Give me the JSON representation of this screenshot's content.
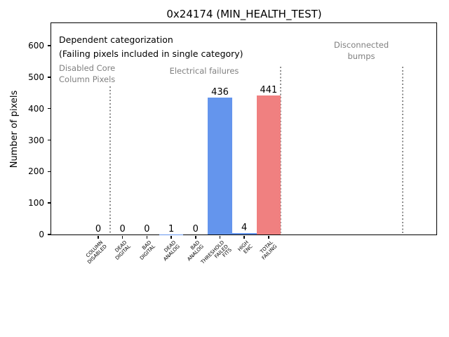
{
  "window": {
    "title": "0x24174 (MIN_HEALTH_TEST)"
  },
  "chart_data": {
    "type": "bar",
    "title": "0x24174 (MIN_HEALTH_TEST)",
    "xlabel": "",
    "ylabel": "Number of pixels",
    "ylim": [
      0,
      672
    ],
    "xlim_category_units": [
      -2,
      14
    ],
    "grid": false,
    "legend": false,
    "yticks": [
      0,
      100,
      200,
      300,
      400,
      500,
      600
    ],
    "categories": [
      "COLUMN\nDISABLED",
      "DEAD\nDIGITAL",
      "BAD\nDIGITAL",
      "DEAD\nANALOG",
      "BAD\nANALOG",
      "THRESHOLD\nFAILED\nFITS",
      "HIGH\nENC",
      "TOTAL\nFAILING"
    ],
    "values": [
      0,
      0,
      0,
      1,
      0,
      436,
      4,
      441
    ],
    "value_labels": [
      "0",
      "0",
      "0",
      "1",
      "0",
      "436",
      "4",
      "441"
    ],
    "bar_colors": [
      "#6495ED",
      "#6495ED",
      "#6495ED",
      "#6495ED",
      "#6495ED",
      "#6495ED",
      "#6495ED",
      "#F08080"
    ],
    "separators_at_category_units": [
      0.5,
      7.5,
      12.5
    ],
    "annotations": {
      "note": "Dependent categorization\n(Failing pixels included in single category)",
      "sections": [
        {
          "label": "Disabled Core\nColumn Pixels",
          "color": "#808080"
        },
        {
          "label": "Electrical failures",
          "color": "#808080"
        },
        {
          "label": "Disconnected\nbumps",
          "color": "#808080"
        }
      ]
    }
  },
  "colors": {
    "bar_blue": "#6495ED",
    "bar_red": "#F08080",
    "annotation_gray": "#808080",
    "separator_gray": "#8f8f8f",
    "axis_black": "#000000",
    "background": "#ffffff"
  }
}
